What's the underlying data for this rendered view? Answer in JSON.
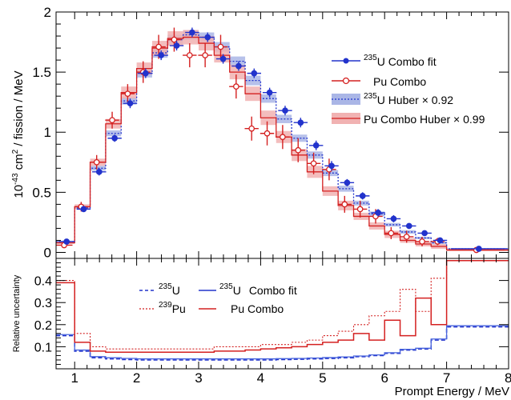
{
  "colors": {
    "u235": "#2233cc",
    "pu": "#d42020",
    "u235_band": "#aab6e6",
    "pu_band": "#f1b2b2"
  },
  "chart_data": [
    {
      "type": "scatter",
      "panel": "top",
      "ylabel_pre": "10",
      "ylabel_exp": "-43",
      "ylabel_mid": " cm",
      "ylabel_exp2": "2",
      "ylabel_post": " / fission / MeV",
      "xlim": [
        0.7,
        8.0
      ],
      "ylim": [
        -0.05,
        2.0
      ],
      "yticks": [
        "0",
        "0.5",
        "1",
        "1.5",
        "2"
      ],
      "legend": {
        "position": "right",
        "entries": [
          {
            "iso": "235",
            "label": "U   Combo fit"
          },
          {
            "iso": "",
            "label": "Pu Combo"
          },
          {
            "iso": "235",
            "label": "U   Huber × 0.92"
          },
          {
            "iso": "",
            "label": "Pu Combo Huber × 0.99"
          }
        ]
      },
      "bin_edges": [
        0.7,
        1.0,
        1.25,
        1.5,
        1.75,
        2.0,
        2.25,
        2.5,
        2.75,
        3.0,
        3.25,
        3.5,
        3.75,
        4.0,
        4.25,
        4.5,
        4.75,
        5.0,
        5.25,
        5.5,
        5.75,
        6.0,
        6.25,
        6.5,
        6.75,
        7.0,
        8.0
      ],
      "series": [
        {
          "name": "U Combo fit",
          "values": [
            0.09,
            0.36,
            0.67,
            0.95,
            1.24,
            1.49,
            1.64,
            1.72,
            1.83,
            1.79,
            1.61,
            1.55,
            1.49,
            1.33,
            1.18,
            1.08,
            0.89,
            0.72,
            0.58,
            0.47,
            0.33,
            0.28,
            0.22,
            0.16,
            0.1,
            0.03
          ],
          "errors": [
            0.01,
            0.02,
            0.03,
            0.03,
            0.04,
            0.04,
            0.04,
            0.04,
            0.04,
            0.04,
            0.04,
            0.04,
            0.04,
            0.04,
            0.04,
            0.04,
            0.04,
            0.04,
            0.03,
            0.03,
            0.03,
            0.03,
            0.02,
            0.02,
            0.02,
            0.01
          ]
        },
        {
          "name": "Pu Combo",
          "values": [
            0.06,
            0.38,
            0.75,
            1.1,
            1.32,
            1.5,
            1.71,
            1.77,
            1.64,
            1.64,
            1.71,
            1.38,
            1.03,
            0.99,
            0.96,
            0.85,
            0.74,
            0.69,
            0.4,
            0.36,
            0.3,
            0.16,
            0.13,
            0.09,
            0.09,
            0.02
          ],
          "errors": [
            0.02,
            0.04,
            0.06,
            0.07,
            0.08,
            0.09,
            0.1,
            0.1,
            0.1,
            0.1,
            0.1,
            0.1,
            0.1,
            0.1,
            0.1,
            0.1,
            0.09,
            0.09,
            0.07,
            0.07,
            0.06,
            0.05,
            0.05,
            0.04,
            0.03,
            0.02
          ]
        },
        {
          "name": "U Huber x 0.92",
          "values": [
            0.09,
            0.37,
            0.7,
            0.99,
            1.26,
            1.49,
            1.66,
            1.77,
            1.81,
            1.79,
            1.71,
            1.59,
            1.43,
            1.28,
            1.11,
            0.95,
            0.81,
            0.66,
            0.53,
            0.41,
            0.32,
            0.23,
            0.17,
            0.12,
            0.08,
            0.03
          ],
          "band": [
            0.005,
            0.01,
            0.02,
            0.025,
            0.03,
            0.035,
            0.04,
            0.04,
            0.04,
            0.04,
            0.04,
            0.04,
            0.04,
            0.035,
            0.035,
            0.03,
            0.03,
            0.025,
            0.025,
            0.02,
            0.02,
            0.015,
            0.015,
            0.01,
            0.01,
            0.005
          ]
        },
        {
          "name": "Pu Combo Huber x 0.99",
          "values": [
            0.08,
            0.38,
            0.75,
            1.07,
            1.33,
            1.53,
            1.7,
            1.78,
            1.79,
            1.74,
            1.64,
            1.5,
            1.32,
            1.12,
            0.96,
            0.81,
            0.67,
            0.51,
            0.39,
            0.3,
            0.22,
            0.15,
            0.1,
            0.07,
            0.05,
            0.02
          ],
          "band": [
            0.01,
            0.02,
            0.03,
            0.04,
            0.05,
            0.05,
            0.06,
            0.06,
            0.06,
            0.06,
            0.06,
            0.06,
            0.06,
            0.06,
            0.05,
            0.05,
            0.05,
            0.04,
            0.04,
            0.03,
            0.03,
            0.03,
            0.02,
            0.02,
            0.02,
            0.01
          ]
        }
      ]
    },
    {
      "type": "line",
      "panel": "bottom",
      "ylabel": "Relative uncertainty",
      "xlabel": "Prompt Energy / MeV",
      "xlim": [
        0.7,
        8.0
      ],
      "ylim": [
        0.0,
        0.5
      ],
      "xticks": [
        "1",
        "2",
        "3",
        "4",
        "5",
        "6",
        "7",
        "8"
      ],
      "yticks": [
        "0.1",
        "0.2",
        "0.3",
        "0.4"
      ],
      "legend": {
        "position": "top",
        "entries": [
          {
            "iso": "235",
            "el": "U",
            "label": ""
          },
          {
            "iso": "235",
            "el": "U",
            "label": "Combo fit"
          },
          {
            "iso": "239",
            "el": "Pu",
            "label": ""
          },
          {
            "iso": "",
            "el": "",
            "label": "Pu Combo"
          }
        ]
      },
      "bin_edges": [
        0.7,
        1.0,
        1.25,
        1.5,
        1.75,
        2.0,
        2.25,
        2.5,
        2.75,
        3.0,
        3.25,
        3.5,
        3.75,
        4.0,
        4.25,
        4.5,
        4.75,
        5.0,
        5.25,
        5.5,
        5.75,
        6.0,
        6.25,
        6.5,
        6.75,
        7.0,
        8.0
      ],
      "series": [
        {
          "name": "235U",
          "values": [
            0.15,
            0.08,
            0.05,
            0.045,
            0.042,
            0.04,
            0.04,
            0.04,
            0.04,
            0.04,
            0.04,
            0.04,
            0.04,
            0.04,
            0.042,
            0.043,
            0.045,
            0.047,
            0.05,
            0.055,
            0.06,
            0.07,
            0.085,
            0.09,
            0.13,
            0.19
          ]
        },
        {
          "name": "235U Combo fit",
          "values": [
            0.155,
            0.085,
            0.055,
            0.05,
            0.047,
            0.045,
            0.045,
            0.045,
            0.045,
            0.045,
            0.045,
            0.045,
            0.045,
            0.045,
            0.046,
            0.047,
            0.049,
            0.051,
            0.054,
            0.058,
            0.063,
            0.073,
            0.088,
            0.093,
            0.135,
            0.195
          ]
        },
        {
          "name": "239Pu",
          "values": [
            0.4,
            0.16,
            0.1,
            0.09,
            0.09,
            0.09,
            0.09,
            0.09,
            0.09,
            0.09,
            0.1,
            0.1,
            0.1,
            0.11,
            0.11,
            0.12,
            0.13,
            0.15,
            0.17,
            0.2,
            0.24,
            0.26,
            0.36,
            0.26,
            0.41,
            0.49
          ]
        },
        {
          "name": "Pu Combo",
          "values": [
            0.39,
            0.12,
            0.08,
            0.075,
            0.075,
            0.075,
            0.075,
            0.075,
            0.075,
            0.075,
            0.08,
            0.08,
            0.085,
            0.09,
            0.095,
            0.1,
            0.11,
            0.12,
            0.13,
            0.16,
            0.13,
            0.22,
            0.15,
            0.32,
            0.2,
            0.49
          ]
        }
      ]
    }
  ]
}
